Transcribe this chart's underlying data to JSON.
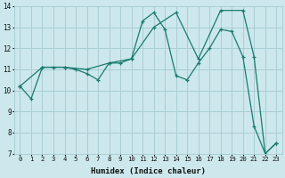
{
  "xlabel": "Humidex (Indice chaleur)",
  "xlim": [
    -0.5,
    23.5
  ],
  "ylim": [
    7,
    14
  ],
  "xticks": [
    0,
    1,
    2,
    3,
    4,
    5,
    6,
    7,
    8,
    9,
    10,
    11,
    12,
    13,
    14,
    15,
    16,
    17,
    18,
    19,
    20,
    21,
    22,
    23
  ],
  "yticks": [
    7,
    8,
    9,
    10,
    11,
    12,
    13,
    14
  ],
  "bg_color": "#cce8ec",
  "grid_color": "#aacdd4",
  "line_color": "#1a7a6e",
  "series1_x": [
    0,
    1,
    2,
    3,
    4,
    5,
    6,
    7,
    8,
    9,
    10,
    11,
    12,
    13,
    14,
    15,
    16,
    17,
    18,
    19,
    20,
    21,
    22,
    23
  ],
  "series1_y": [
    10.2,
    9.6,
    11.1,
    11.1,
    11.1,
    11.0,
    10.8,
    10.5,
    11.3,
    11.3,
    11.5,
    13.3,
    13.7,
    12.9,
    10.7,
    10.5,
    11.3,
    12.0,
    12.9,
    12.8,
    11.6,
    8.3,
    7.0,
    7.5
  ],
  "series2_x": [
    0,
    2,
    4,
    6,
    8,
    10,
    12,
    14,
    16,
    18,
    20,
    21,
    22,
    23
  ],
  "series2_y": [
    10.2,
    11.1,
    11.1,
    11.0,
    11.3,
    11.5,
    13.0,
    13.7,
    11.5,
    13.8,
    13.8,
    11.6,
    7.0,
    7.5
  ]
}
